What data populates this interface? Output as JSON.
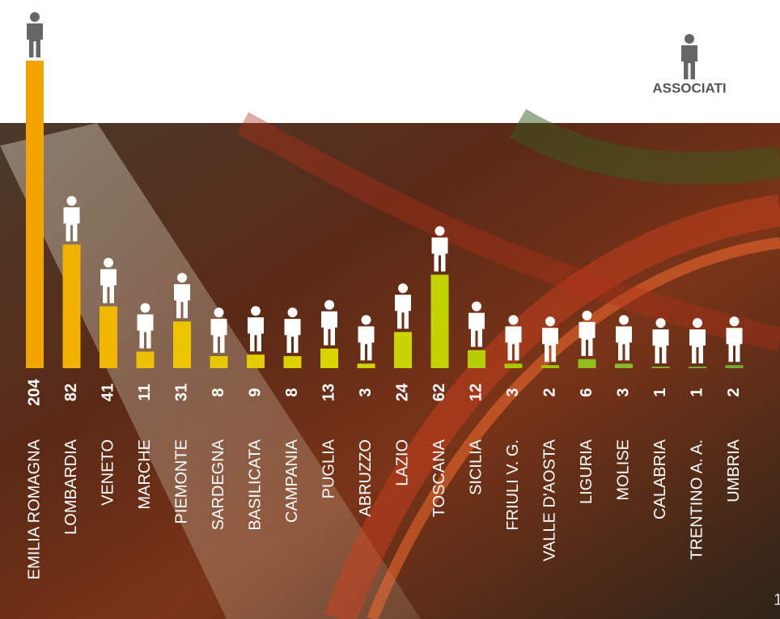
{
  "chart_data": {
    "type": "bar",
    "legend_label": "ASSOCIATI",
    "categories": [
      "EMILIA ROMAGNA",
      "LOMBARDIA",
      "VENETO",
      "MARCHE",
      "PIEMONTE",
      "SARDEGNA",
      "BASILICATA",
      "CAMPANIA",
      "PUGLIA",
      "ABRUZZO",
      "LAZIO",
      "TOSCANA",
      "SICILIA",
      "FRIULI V. G.",
      "VALLE D'AOSTA",
      "LIGURIA",
      "MOLISE",
      "CALABRIA",
      "TRENTINO A. A.",
      "UMBRIA"
    ],
    "values": [
      204,
      82,
      41,
      11,
      31,
      8,
      9,
      8,
      13,
      3,
      24,
      62,
      12,
      3,
      2,
      6,
      3,
      1,
      1,
      2
    ],
    "colors": [
      "#f2a500",
      "#f2b100",
      "#f0b800",
      "#eec000",
      "#ecc400",
      "#e6c800",
      "#e2cc00",
      "#dcd000",
      "#d8d200",
      "#d2d400",
      "#cad400",
      "#c2d200",
      "#b6ce00",
      "#a8c800",
      "#9cc400",
      "#90be1e",
      "#86ba26",
      "#7eb62c",
      "#78b230",
      "#72ae34"
    ]
  },
  "page_number": "1"
}
